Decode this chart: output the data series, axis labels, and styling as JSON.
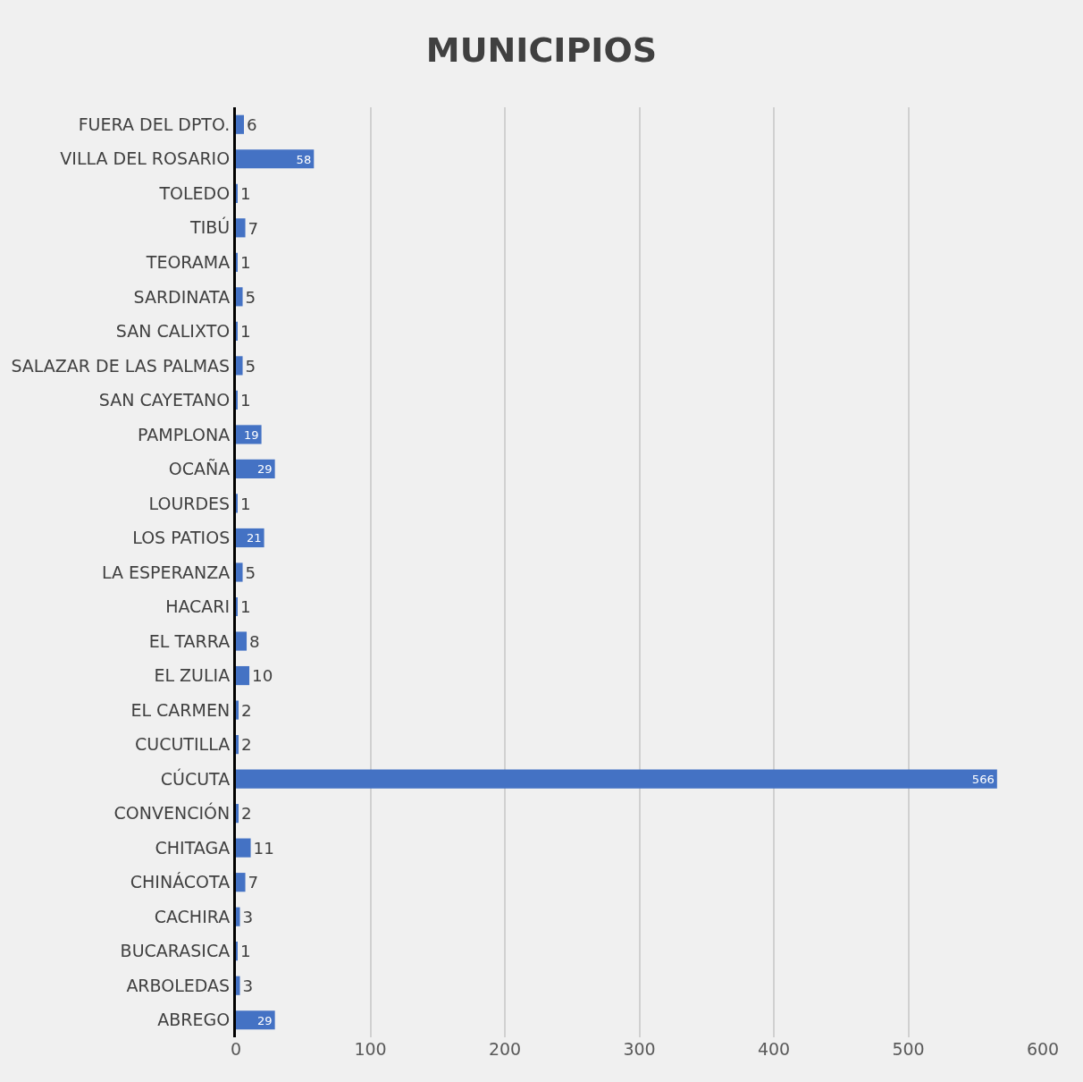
{
  "chart_data": {
    "type": "bar",
    "orientation": "horizontal",
    "title": "MUNICIPIOS",
    "categories": [
      "FUERA DEL DPTO.",
      "VILLA DEL ROSARIO",
      "TOLEDO",
      "TIBÚ",
      "TEORAMA",
      "SARDINATA",
      "SAN CALIXTO",
      "SALAZAR DE LAS PALMAS",
      "SAN CAYETANO",
      "PAMPLONA",
      "OCAÑA",
      "LOURDES",
      "LOS PATIOS",
      "LA ESPERANZA",
      "HACARI",
      "EL TARRA",
      "EL ZULIA",
      "EL CARMEN",
      "CUCUTILLA",
      "CÚCUTA",
      "CONVENCIÓN",
      "CHITAGA",
      "CHINÁCOTA",
      "CACHIRA",
      "BUCARASICA",
      "ARBOLEDAS",
      "ABREGO"
    ],
    "values": [
      6,
      58,
      1,
      7,
      1,
      5,
      1,
      5,
      1,
      19,
      29,
      1,
      21,
      5,
      1,
      8,
      10,
      2,
      2,
      566,
      2,
      11,
      7,
      3,
      1,
      3,
      29
    ],
    "color": "#4472c4",
    "xlim": [
      0,
      600
    ],
    "xticks": [
      0,
      100,
      200,
      300,
      400,
      500,
      600
    ],
    "grid": "x",
    "data_labels": true
  }
}
